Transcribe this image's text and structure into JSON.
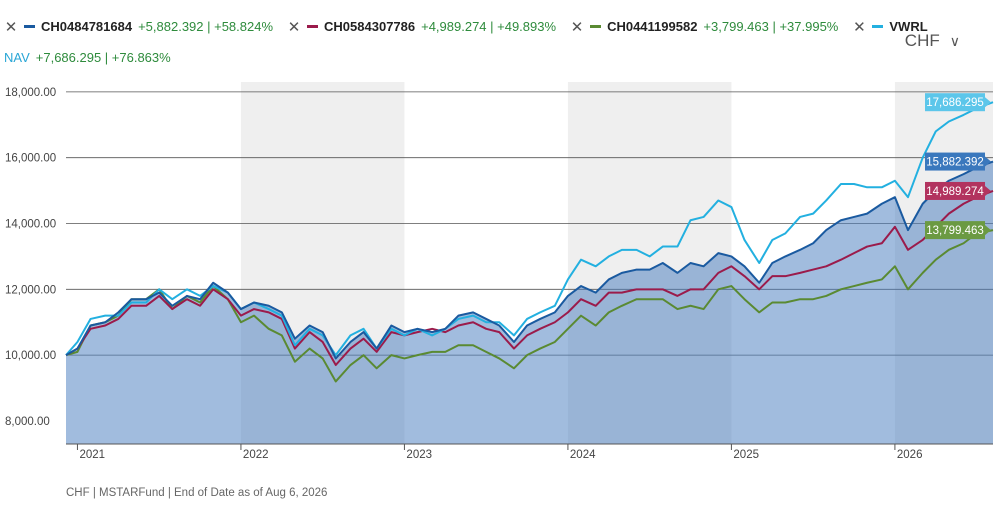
{
  "legend": [
    {
      "close": "✕",
      "ticker": "CH0484781684",
      "color": "#1a5aa0",
      "change": "+5,882.392 | +58.824%"
    },
    {
      "close": "✕",
      "ticker": "CH0584307786",
      "color": "#9b1b4b",
      "change": "+4,989.274 | +49.893%"
    },
    {
      "close": "✕",
      "ticker": "CH0441199582",
      "color": "#5a8a32",
      "change": "+3,799.463 | +37.995%"
    },
    {
      "close": "✕",
      "ticker": "VWRL",
      "color": "#23b0e0",
      "change": ""
    }
  ],
  "nav": {
    "label": "NAV",
    "change": "+7,686.295 | +76.863%"
  },
  "currency": {
    "value": "CHF",
    "chevron": "∨"
  },
  "footer": "CHF | MSTARFund | End of Date as of Aug 6, 2026",
  "chart_data": {
    "type": "line",
    "ylim": [
      8000,
      18000
    ],
    "y_ticks": [
      "8,000.00",
      "10,000.00",
      "12,000.00",
      "14,000.00",
      "16,000.00",
      "18,000.00"
    ],
    "y_tick_values": [
      8000,
      10000,
      12000,
      14000,
      16000,
      18000
    ],
    "x_ticks": [
      "2021",
      "2022",
      "2023",
      "2024",
      "2025",
      "2026"
    ],
    "x_tick_values": [
      2021.0,
      2022.0,
      2023.0,
      2024.0,
      2025.0,
      2026.0
    ],
    "xlim": [
      2020.93,
      2026.6
    ],
    "shaded_years": [
      [
        2022.0,
        2023.0
      ],
      [
        2024.0,
        2025.0
      ],
      [
        2026.0,
        2026.6
      ]
    ],
    "grid": "horizontal",
    "area_series": "CH0484781684",
    "series": [
      {
        "name": "CH0484781684",
        "color": "#1a5aa0",
        "x": [
          2020.93,
          2021.0,
          2021.08,
          2021.17,
          2021.25,
          2021.33,
          2021.42,
          2021.5,
          2021.58,
          2021.67,
          2021.75,
          2021.83,
          2021.92,
          2022.0,
          2022.08,
          2022.17,
          2022.25,
          2022.33,
          2022.42,
          2022.5,
          2022.58,
          2022.67,
          2022.75,
          2022.83,
          2022.92,
          2023.0,
          2023.08,
          2023.17,
          2023.25,
          2023.33,
          2023.42,
          2023.5,
          2023.58,
          2023.67,
          2023.75,
          2023.83,
          2023.92,
          2024.0,
          2024.08,
          2024.17,
          2024.25,
          2024.33,
          2024.42,
          2024.5,
          2024.58,
          2024.67,
          2024.75,
          2024.83,
          2024.92,
          2025.0,
          2025.08,
          2025.17,
          2025.25,
          2025.33,
          2025.42,
          2025.5,
          2025.58,
          2025.67,
          2025.75,
          2025.83,
          2025.92,
          2026.0,
          2026.08,
          2026.17,
          2026.25,
          2026.33,
          2026.42,
          2026.5,
          2026.6
        ],
        "y": [
          10000,
          10200,
          10900,
          11000,
          11300,
          11700,
          11700,
          11900,
          11500,
          11800,
          11700,
          12200,
          11900,
          11400,
          11600,
          11500,
          11300,
          10500,
          10900,
          10700,
          9900,
          10400,
          10700,
          10200,
          10900,
          10700,
          10800,
          10700,
          10800,
          11200,
          11300,
          11100,
          10900,
          10400,
          10900,
          11100,
          11300,
          11800,
          12100,
          11900,
          12300,
          12500,
          12600,
          12600,
          12800,
          12500,
          12800,
          12700,
          13100,
          13000,
          12700,
          12200,
          12800,
          13000,
          13200,
          13400,
          13800,
          14100,
          14200,
          14300,
          14600,
          14800,
          13800,
          14600,
          15000,
          15300,
          15500,
          15700,
          15882.392
        ]
      },
      {
        "name": "CH0584307786",
        "color": "#9b1b4b",
        "x": [
          2020.93,
          2021.0,
          2021.08,
          2021.17,
          2021.25,
          2021.33,
          2021.42,
          2021.5,
          2021.58,
          2021.67,
          2021.75,
          2021.83,
          2021.92,
          2022.0,
          2022.08,
          2022.17,
          2022.25,
          2022.33,
          2022.42,
          2022.5,
          2022.58,
          2022.67,
          2022.75,
          2022.83,
          2022.92,
          2023.0,
          2023.08,
          2023.17,
          2023.25,
          2023.33,
          2023.42,
          2023.5,
          2023.58,
          2023.67,
          2023.75,
          2023.83,
          2023.92,
          2024.0,
          2024.08,
          2024.17,
          2024.25,
          2024.33,
          2024.42,
          2024.5,
          2024.58,
          2024.67,
          2024.75,
          2024.83,
          2024.92,
          2025.0,
          2025.08,
          2025.17,
          2025.25,
          2025.33,
          2025.42,
          2025.5,
          2025.58,
          2025.67,
          2025.75,
          2025.83,
          2025.92,
          2026.0,
          2026.08,
          2026.17,
          2026.25,
          2026.33,
          2026.42,
          2026.5,
          2026.6
        ],
        "y": [
          10000,
          10200,
          10800,
          10900,
          11100,
          11500,
          11500,
          11800,
          11400,
          11700,
          11500,
          12000,
          11700,
          11200,
          11400,
          11300,
          11100,
          10200,
          10700,
          10400,
          9700,
          10200,
          10500,
          10100,
          10700,
          10600,
          10700,
          10800,
          10700,
          10900,
          11000,
          10800,
          10700,
          10200,
          10600,
          10800,
          11000,
          11300,
          11700,
          11500,
          11900,
          11900,
          12000,
          12000,
          12000,
          11800,
          12000,
          12000,
          12500,
          12700,
          12400,
          12000,
          12400,
          12400,
          12500,
          12600,
          12700,
          12900,
          13100,
          13300,
          13400,
          13900,
          13200,
          13500,
          13900,
          14300,
          14600,
          14800,
          14989.274
        ]
      },
      {
        "name": "CH0441199582",
        "color": "#5a8a32",
        "x": [
          2020.93,
          2021.0,
          2021.08,
          2021.17,
          2021.25,
          2021.33,
          2021.42,
          2021.5,
          2021.58,
          2021.67,
          2021.75,
          2021.83,
          2021.92,
          2022.0,
          2022.08,
          2022.17,
          2022.25,
          2022.33,
          2022.42,
          2022.5,
          2022.58,
          2022.67,
          2022.75,
          2022.83,
          2022.92,
          2023.0,
          2023.08,
          2023.17,
          2023.25,
          2023.33,
          2023.42,
          2023.5,
          2023.58,
          2023.67,
          2023.75,
          2023.83,
          2023.92,
          2024.0,
          2024.08,
          2024.17,
          2024.25,
          2024.33,
          2024.42,
          2024.5,
          2024.58,
          2024.67,
          2024.75,
          2024.83,
          2024.92,
          2025.0,
          2025.08,
          2025.17,
          2025.25,
          2025.33,
          2025.42,
          2025.5,
          2025.58,
          2025.67,
          2025.75,
          2025.83,
          2025.92,
          2026.0,
          2026.08,
          2026.17,
          2026.25,
          2026.33,
          2026.42,
          2026.5,
          2026.6
        ],
        "y": [
          10000,
          10100,
          10900,
          11000,
          11200,
          11700,
          11700,
          12000,
          11400,
          11800,
          11600,
          12100,
          11700,
          11000,
          11200,
          10800,
          10600,
          9800,
          10200,
          9900,
          9200,
          9700,
          10000,
          9600,
          10000,
          9900,
          10000,
          10100,
          10100,
          10300,
          10300,
          10100,
          9900,
          9600,
          10000,
          10200,
          10400,
          10800,
          11200,
          10900,
          11300,
          11500,
          11700,
          11700,
          11700,
          11400,
          11500,
          11400,
          12000,
          12100,
          11700,
          11300,
          11600,
          11600,
          11700,
          11700,
          11800,
          12000,
          12100,
          12200,
          12300,
          12700,
          12000,
          12500,
          12900,
          13200,
          13400,
          13700,
          13799.463
        ]
      },
      {
        "name": "VWRL",
        "color": "#23b0e0",
        "x": [
          2020.93,
          2021.0,
          2021.08,
          2021.17,
          2021.25,
          2021.33,
          2021.42,
          2021.5,
          2021.58,
          2021.67,
          2021.75,
          2021.83,
          2021.92,
          2022.0,
          2022.08,
          2022.17,
          2022.25,
          2022.33,
          2022.42,
          2022.5,
          2022.58,
          2022.67,
          2022.75,
          2022.83,
          2022.92,
          2023.0,
          2023.08,
          2023.17,
          2023.25,
          2023.33,
          2023.42,
          2023.5,
          2023.58,
          2023.67,
          2023.75,
          2023.83,
          2023.92,
          2024.0,
          2024.08,
          2024.17,
          2024.25,
          2024.33,
          2024.42,
          2024.5,
          2024.58,
          2024.67,
          2024.75,
          2024.83,
          2024.92,
          2025.0,
          2025.08,
          2025.17,
          2025.25,
          2025.33,
          2025.42,
          2025.5,
          2025.58,
          2025.67,
          2025.75,
          2025.83,
          2025.92,
          2026.0,
          2026.08,
          2026.17,
          2026.25,
          2026.33,
          2026.42,
          2026.5,
          2026.6
        ],
        "y": [
          10000,
          10400,
          11100,
          11200,
          11200,
          11600,
          11600,
          12000,
          11700,
          12000,
          11800,
          12100,
          11900,
          11400,
          11600,
          11400,
          11200,
          10300,
          10800,
          10600,
          10000,
          10600,
          10800,
          10200,
          10800,
          10600,
          10800,
          10600,
          10800,
          11100,
          11200,
          11000,
          11000,
          10600,
          11100,
          11300,
          11500,
          12300,
          12900,
          12700,
          13000,
          13200,
          13200,
          13000,
          13300,
          13300,
          14100,
          14200,
          14700,
          14500,
          13500,
          12800,
          13500,
          13700,
          14200,
          14300,
          14700,
          15200,
          15200,
          15100,
          15100,
          15300,
          14800,
          16000,
          16800,
          17100,
          17300,
          17500,
          17686.295
        ]
      }
    ],
    "end_labels": [
      {
        "series": "VWRL",
        "text": "17,686.295",
        "color": "#5cc6ea",
        "y": 17686.295
      },
      {
        "series": "CH0484781684",
        "text": "15,882.392",
        "color": "#3a78bd",
        "y": 15882.392
      },
      {
        "series": "CH0584307786",
        "text": "14,989.274",
        "color": "#b2335f",
        "y": 14989.274
      },
      {
        "series": "CH0441199582",
        "text": "13,799.463",
        "color": "#6b9a42",
        "y": 13799.463
      }
    ]
  }
}
